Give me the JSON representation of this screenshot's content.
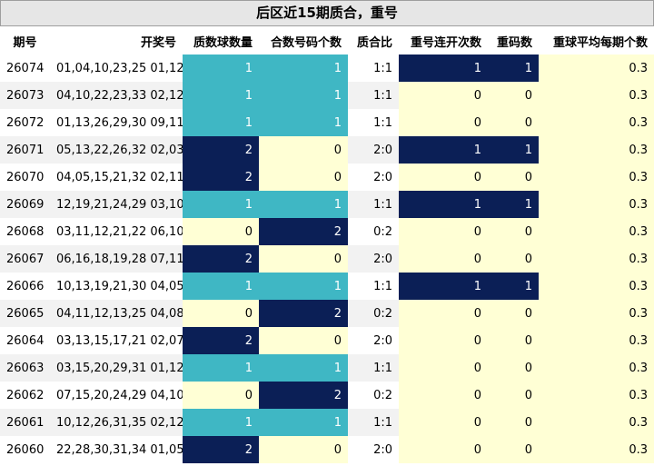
{
  "title": "后区近15期质合，重号",
  "headers": [
    "期号",
    "开奖号",
    "质数球数量",
    "合数号码个数",
    "质合比",
    "重号连开次数",
    "重码数",
    "重球平均每期个数"
  ],
  "colors": {
    "cyan": "#3fb7c4",
    "navy": "#0b1f56",
    "cream": "#ffffd5",
    "white": "#ffffff",
    "gray": "#f2f2f2"
  },
  "rows": [
    {
      "period": "26074",
      "numbers": "01,04,10,23,25 01,12",
      "prime": "1",
      "composite": "1",
      "ratio": "1:1",
      "streak": "1",
      "repeat": "1",
      "avg": "0.3"
    },
    {
      "period": "26073",
      "numbers": "04,10,22,23,33 02,12",
      "prime": "1",
      "composite": "1",
      "ratio": "1:1",
      "streak": "0",
      "repeat": "0",
      "avg": "0.3"
    },
    {
      "period": "26072",
      "numbers": "01,13,26,29,30 09,11",
      "prime": "1",
      "composite": "1",
      "ratio": "1:1",
      "streak": "0",
      "repeat": "0",
      "avg": "0.3"
    },
    {
      "period": "26071",
      "numbers": "05,13,22,26,32 02,03",
      "prime": "2",
      "composite": "0",
      "ratio": "2:0",
      "streak": "1",
      "repeat": "1",
      "avg": "0.3"
    },
    {
      "period": "26070",
      "numbers": "04,05,15,21,32 02,11",
      "prime": "2",
      "composite": "0",
      "ratio": "2:0",
      "streak": "0",
      "repeat": "0",
      "avg": "0.3"
    },
    {
      "period": "26069",
      "numbers": "12,19,21,24,29 03,10",
      "prime": "1",
      "composite": "1",
      "ratio": "1:1",
      "streak": "1",
      "repeat": "1",
      "avg": "0.3"
    },
    {
      "period": "26068",
      "numbers": "03,11,12,21,22 06,10",
      "prime": "0",
      "composite": "2",
      "ratio": "0:2",
      "streak": "0",
      "repeat": "0",
      "avg": "0.3"
    },
    {
      "period": "26067",
      "numbers": "06,16,18,19,28 07,11",
      "prime": "2",
      "composite": "0",
      "ratio": "2:0",
      "streak": "0",
      "repeat": "0",
      "avg": "0.3"
    },
    {
      "period": "26066",
      "numbers": "10,13,19,21,30 04,05",
      "prime": "1",
      "composite": "1",
      "ratio": "1:1",
      "streak": "1",
      "repeat": "1",
      "avg": "0.3"
    },
    {
      "period": "26065",
      "numbers": "04,11,12,13,25 04,08",
      "prime": "0",
      "composite": "2",
      "ratio": "0:2",
      "streak": "0",
      "repeat": "0",
      "avg": "0.3"
    },
    {
      "period": "26064",
      "numbers": "03,13,15,17,21 02,07",
      "prime": "2",
      "composite": "0",
      "ratio": "2:0",
      "streak": "0",
      "repeat": "0",
      "avg": "0.3"
    },
    {
      "period": "26063",
      "numbers": "03,15,20,29,31 01,12",
      "prime": "1",
      "composite": "1",
      "ratio": "1:1",
      "streak": "0",
      "repeat": "0",
      "avg": "0.3"
    },
    {
      "period": "26062",
      "numbers": "07,15,20,24,29 04,10",
      "prime": "0",
      "composite": "2",
      "ratio": "0:2",
      "streak": "0",
      "repeat": "0",
      "avg": "0.3"
    },
    {
      "period": "26061",
      "numbers": "10,12,26,31,35 02,12",
      "prime": "1",
      "composite": "1",
      "ratio": "1:1",
      "streak": "0",
      "repeat": "0",
      "avg": "0.3"
    },
    {
      "period": "26060",
      "numbers": "22,28,30,31,34 01,05",
      "prime": "2",
      "composite": "0",
      "ratio": "2:0",
      "streak": "0",
      "repeat": "0",
      "avg": "0.3"
    }
  ]
}
